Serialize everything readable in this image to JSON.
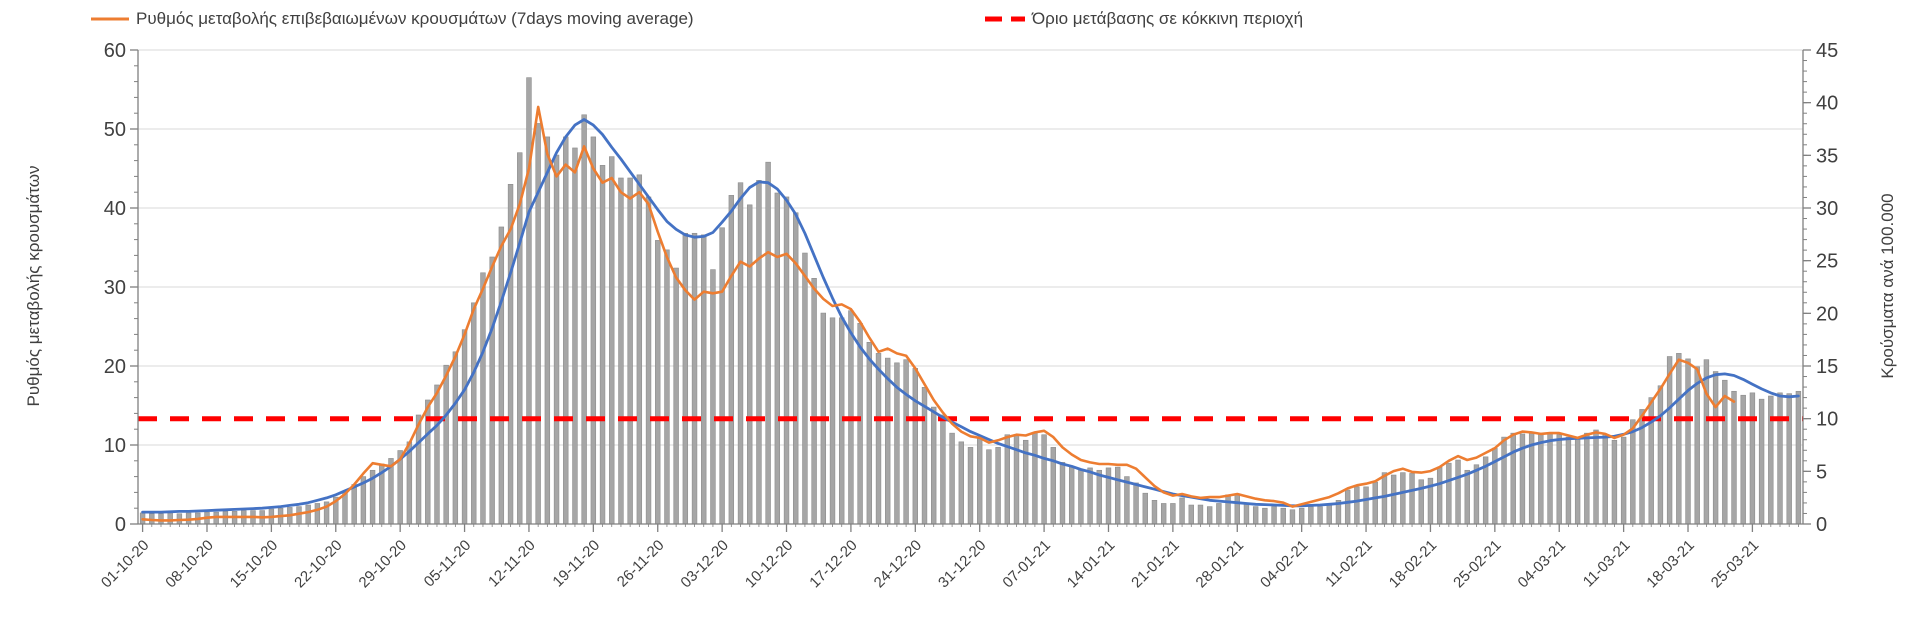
{
  "legend": {
    "items": [
      {
        "label": "Ρυθμός μεταβολής επιβεβαιωμένων κρουσμάτων (7days moving average)",
        "swatch": "orange-line",
        "color": "#ED7D31"
      },
      {
        "label": "Όριο μετάβασης σε κόκκινη περιοχή",
        "swatch": "red-dashed-line",
        "color": "#FF0000"
      }
    ]
  },
  "axes": {
    "left_title": "Ρυθμός μεταβολής κρουσμάτων",
    "right_title": "Κρούσματα ανά 100.000"
  },
  "colors": {
    "bars": "#A6A6A6",
    "bar_edge": "#8C8C8C",
    "moving_average": "#ED7D31",
    "trend": "#4472C4",
    "threshold": "#FF0000",
    "grid": "#D9D9D9",
    "axis": "#808080",
    "text": "#404040",
    "background": "#FFFFFF"
  },
  "chart_data": {
    "type": "combo-bar-line",
    "n_points": 181,
    "x_start_date": "01-10-20",
    "x_tick_interval_days": 7,
    "x_tick_labels": [
      "01-10-20",
      "08-10-20",
      "15-10-20",
      "22-10-20",
      "29-10-20",
      "05-11-20",
      "12-11-20",
      "19-11-20",
      "26-11-20",
      "03-12-20",
      "10-12-20",
      "17-12-20",
      "24-12-20",
      "31-12-20",
      "07-01-21",
      "14-01-21",
      "21-01-21",
      "28-01-21",
      "04-02-21",
      "11-02-21",
      "18-02-21",
      "25-02-21",
      "04-03-21",
      "11-03-21",
      "18-03-21",
      "25-03-21"
    ],
    "left_axis": {
      "min": 0,
      "max": 60,
      "ticks": [
        0,
        10,
        20,
        30,
        40,
        50,
        60
      ],
      "minor_step": 2
    },
    "right_axis": {
      "min": 0,
      "max": 45,
      "ticks": [
        0,
        5,
        10,
        15,
        20,
        25,
        30,
        35,
        40,
        45
      ],
      "minor_step": 1
    },
    "grid": "horizontal-only",
    "legend_position": "top",
    "threshold": {
      "name": "Όριο μετάβασης σε κόκκινη περιοχή",
      "axis": "right",
      "value": 10,
      "left_axis_equivalent": 13.33
    },
    "series": [
      {
        "name": "daily-bars",
        "type": "bar",
        "axis": "left",
        "values": [
          1.4,
          1.3,
          1.3,
          1.4,
          1.3,
          1.4,
          1.4,
          1.5,
          1.5,
          1.6,
          1.6,
          1.7,
          1.7,
          1.7,
          1.9,
          2.0,
          2.1,
          2.2,
          2.4,
          2.6,
          2.8,
          3.4,
          4.2,
          5.0,
          6.0,
          6.8,
          7.6,
          8.3,
          9.3,
          10.4,
          13.8,
          15.7,
          17.6,
          20.1,
          21.8,
          24.6,
          28.0,
          31.8,
          33.8,
          37.6,
          43.0,
          47.0,
          56.5,
          50.7,
          49.0,
          46.7,
          49.0,
          47.6,
          51.8,
          49.0,
          45.4,
          46.5,
          43.8,
          43.8,
          44.2,
          41.4,
          35.9,
          34.7,
          32.4,
          36.8,
          36.8,
          36.6,
          32.2,
          37.5,
          41.6,
          43.2,
          40.4,
          43.5,
          45.8,
          41.9,
          41.4,
          39.4,
          34.3,
          31.1,
          26.7,
          26.1,
          26.1,
          27.0,
          25.4,
          23.0,
          21.6,
          21.0,
          20.4,
          20.8,
          19.7,
          17.3,
          14.8,
          13.8,
          11.5,
          10.4,
          9.7,
          10.9,
          9.4,
          9.7,
          11.3,
          11.3,
          10.6,
          11.5,
          11.3,
          9.7,
          7.8,
          7.2,
          6.8,
          7.1,
          6.8,
          7.1,
          7.2,
          6.0,
          5.2,
          3.9,
          3.0,
          2.6,
          2.6,
          3.3,
          2.4,
          2.4,
          2.2,
          2.6,
          3.7,
          3.7,
          2.6,
          2.2,
          2.0,
          2.2,
          2.0,
          1.8,
          2.0,
          2.2,
          2.2,
          2.4,
          3.0,
          4.3,
          4.7,
          4.7,
          5.3,
          6.5,
          6.2,
          6.5,
          6.4,
          5.6,
          5.8,
          7.2,
          7.7,
          8.1,
          6.8,
          7.5,
          8.5,
          9.6,
          11.0,
          11.5,
          11.4,
          11.5,
          11.3,
          11.4,
          11.3,
          11.0,
          10.9,
          11.5,
          11.9,
          11.3,
          10.6,
          11.0,
          13.2,
          14.5,
          16.0,
          17.5,
          21.2,
          21.6,
          20.9,
          19.9,
          20.8,
          19.3,
          18.2,
          16.8,
          16.3,
          16.6,
          15.8,
          16.2,
          16.6,
          16.5,
          16.8
        ]
      },
      {
        "name": "Ρυθμός μεταβολής επιβεβαιωμένων κρουσμάτων (7days moving average)",
        "type": "line",
        "axis": "left",
        "values": [
          0.6,
          0.5,
          0.45,
          0.45,
          0.5,
          0.55,
          0.65,
          0.8,
          0.9,
          0.9,
          0.9,
          0.9,
          0.9,
          0.85,
          0.9,
          1.0,
          1.1,
          1.3,
          1.5,
          1.8,
          2.2,
          2.9,
          3.8,
          5.0,
          6.4,
          7.7,
          7.5,
          7.3,
          8.2,
          10.2,
          12.6,
          14.8,
          16.6,
          18.8,
          21.2,
          24.0,
          27.2,
          29.8,
          32.6,
          35.2,
          37.3,
          40.5,
          45.0,
          52.8,
          46.8,
          44.0,
          45.5,
          44.5,
          47.8,
          45.0,
          43.2,
          43.8,
          42.0,
          41.2,
          42.0,
          40.5,
          37.0,
          33.8,
          31.2,
          29.6,
          28.4,
          29.4,
          29.2,
          29.4,
          31.4,
          33.2,
          32.6,
          33.6,
          34.4,
          33.8,
          34.2,
          33.0,
          31.4,
          29.8,
          28.5,
          27.6,
          27.8,
          27.2,
          25.6,
          23.6,
          21.8,
          22.2,
          21.6,
          21.3,
          19.7,
          17.7,
          15.7,
          14.1,
          12.7,
          11.7,
          11.1,
          10.9,
          10.3,
          10.6,
          11.0,
          11.3,
          11.2,
          11.6,
          11.8,
          11.0,
          9.7,
          8.8,
          8.1,
          7.8,
          7.6,
          7.6,
          7.5,
          7.5,
          7.0,
          5.9,
          4.8,
          4.0,
          3.6,
          3.8,
          3.5,
          3.3,
          3.4,
          3.4,
          3.6,
          3.8,
          3.5,
          3.2,
          3.0,
          2.9,
          2.7,
          2.2,
          2.5,
          2.8,
          3.1,
          3.4,
          3.9,
          4.5,
          4.9,
          5.1,
          5.4,
          6.1,
          6.7,
          7.0,
          6.6,
          6.5,
          6.7,
          7.2,
          8.0,
          8.6,
          8.1,
          8.4,
          9.0,
          9.6,
          10.6,
          11.3,
          11.7,
          11.6,
          11.4,
          11.5,
          11.5,
          11.2,
          10.9,
          11.3,
          11.6,
          11.4,
          10.9,
          11.3,
          12.1,
          13.7,
          15.4,
          17.1,
          19.0,
          20.8,
          20.4,
          19.6,
          16.5,
          14.8,
          16.2,
          15.5,
          null,
          null,
          null,
          null,
          null,
          null,
          null
        ]
      },
      {
        "name": "smoothed-trend (unlabeled blue line)",
        "type": "line",
        "axis": "left",
        "values": [
          1.5,
          1.5,
          1.5,
          1.55,
          1.6,
          1.6,
          1.65,
          1.7,
          1.75,
          1.8,
          1.85,
          1.9,
          1.95,
          2.0,
          2.1,
          2.2,
          2.35,
          2.5,
          2.7,
          3.0,
          3.3,
          3.7,
          4.2,
          4.7,
          5.2,
          5.8,
          6.5,
          7.3,
          8.2,
          9.2,
          10.3,
          11.4,
          12.5,
          13.8,
          15.3,
          17.0,
          19.2,
          21.8,
          24.8,
          28.2,
          31.8,
          35.6,
          39.5,
          42.0,
          44.5,
          47.0,
          49.0,
          50.5,
          51.2,
          50.5,
          49.3,
          47.7,
          46.2,
          44.6,
          43.0,
          41.4,
          39.8,
          38.3,
          37.3,
          36.6,
          36.3,
          36.4,
          36.9,
          38.2,
          39.6,
          41.2,
          42.6,
          43.3,
          43.2,
          42.4,
          41.0,
          39.2,
          36.8,
          34.0,
          31.2,
          28.6,
          26.2,
          24.2,
          22.4,
          20.9,
          19.6,
          18.4,
          17.3,
          16.4,
          15.6,
          14.9,
          14.2,
          13.5,
          12.9,
          12.3,
          11.7,
          11.2,
          10.7,
          10.2,
          9.8,
          9.4,
          9.0,
          8.7,
          8.3,
          8.0,
          7.6,
          7.3,
          6.9,
          6.6,
          6.2,
          5.9,
          5.6,
          5.3,
          5.0,
          4.7,
          4.4,
          4.1,
          3.8,
          3.6,
          3.4,
          3.2,
          3.0,
          2.9,
          2.8,
          2.7,
          2.6,
          2.5,
          2.45,
          2.4,
          2.35,
          2.3,
          2.3,
          2.35,
          2.4,
          2.5,
          2.6,
          2.75,
          2.9,
          3.1,
          3.3,
          3.5,
          3.75,
          4.0,
          4.25,
          4.5,
          4.8,
          5.1,
          5.5,
          5.9,
          6.3,
          6.8,
          7.3,
          7.9,
          8.5,
          9.1,
          9.6,
          10.0,
          10.3,
          10.55,
          10.7,
          10.8,
          10.85,
          10.9,
          10.95,
          11.0,
          11.1,
          11.35,
          11.7,
          12.2,
          12.9,
          13.7,
          14.7,
          15.8,
          16.9,
          17.8,
          18.5,
          18.9,
          19.0,
          18.8,
          18.3,
          17.7,
          17.1,
          16.6,
          16.2,
          16.1,
          16.2
        ]
      }
    ]
  }
}
